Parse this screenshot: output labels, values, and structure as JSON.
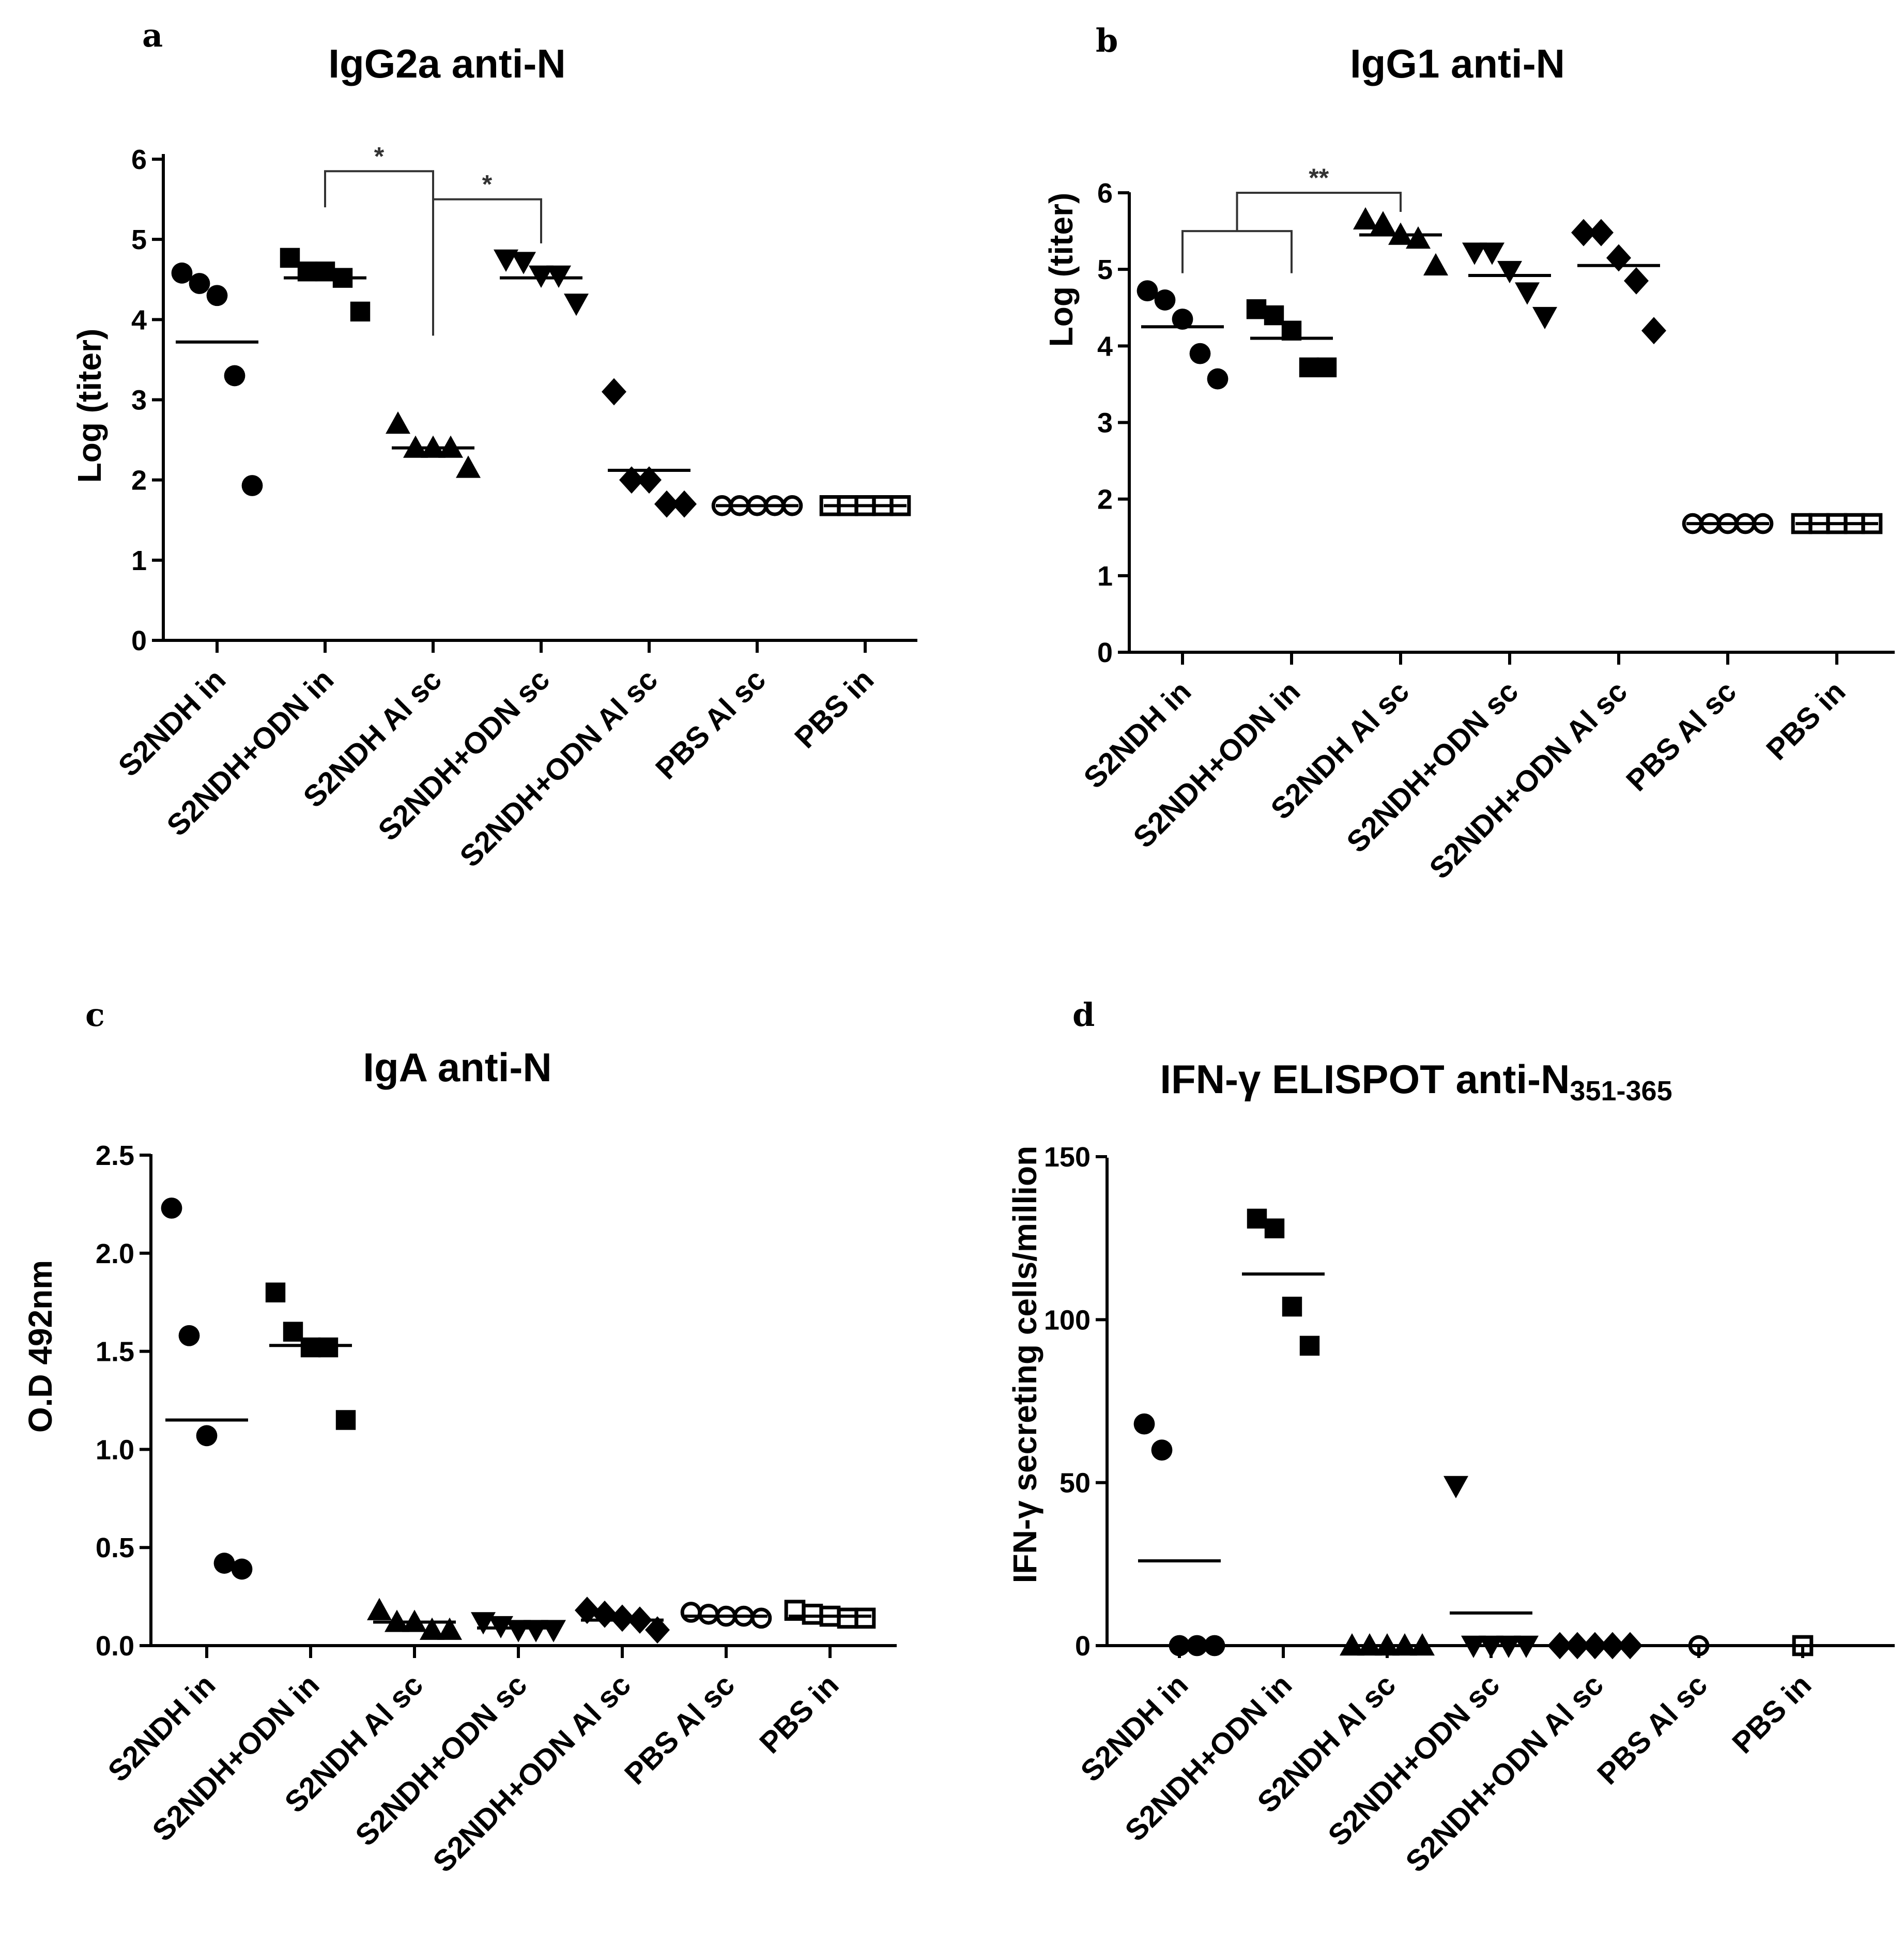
{
  "chart_data": [
    {
      "panel": "a",
      "type": "scatter",
      "title": "IgG2a anti-N",
      "ylabel": "Log (titer)",
      "xlabel": "",
      "ylim": [
        0,
        6
      ],
      "yticks": [
        "0",
        "1",
        "2",
        "3",
        "4",
        "5",
        "6"
      ],
      "categories": [
        "S2NDH in",
        "S2NDH+ODN in",
        "S2NDH Al sc",
        "S2NDH+ODN sc",
        "S2NDH+ODN Al sc",
        "PBS Al sc",
        "PBS in"
      ],
      "markers": [
        "circle",
        "square",
        "triangle-up",
        "triangle-down",
        "diamond",
        "circle-open",
        "square-open"
      ],
      "series": [
        {
          "name": "S2NDH in",
          "values": [
            4.58,
            4.45,
            4.3,
            3.3,
            1.93
          ],
          "median": 3.72
        },
        {
          "name": "S2NDH+ODN in",
          "values": [
            4.77,
            4.6,
            4.6,
            4.52,
            4.1
          ],
          "median": 4.52
        },
        {
          "name": "S2NDH Al sc",
          "values": [
            2.7,
            2.4,
            2.4,
            2.4,
            2.15
          ],
          "median": 2.4
        },
        {
          "name": "S2NDH+ODN sc",
          "values": [
            4.75,
            4.72,
            4.55,
            4.55,
            4.2
          ],
          "median": 4.52
        },
        {
          "name": "S2NDH+ODN Al sc",
          "values": [
            3.1,
            2.0,
            2.0,
            1.7,
            1.7
          ],
          "median": 2.12
        },
        {
          "name": "PBS Al sc",
          "values": [
            1.68,
            1.68,
            1.68,
            1.68,
            1.68
          ],
          "median": 1.68
        },
        {
          "name": "PBS in",
          "values": [
            1.68,
            1.68,
            1.68,
            1.68,
            1.68
          ],
          "median": 1.68
        }
      ],
      "annotations": [
        {
          "label": "*",
          "left": [
            1
          ],
          "right": [
            2
          ],
          "bar_y": 5.85,
          "drop_left": 5.4,
          "drop_right": 3.8
        },
        {
          "label": "*",
          "left": [
            2
          ],
          "right": [
            3
          ],
          "bar_y": 5.5,
          "drop_left": 3.8,
          "drop_right": 4.95
        }
      ]
    },
    {
      "panel": "b",
      "type": "scatter",
      "title": "IgG1 anti-N",
      "ylabel": "Log (titer)",
      "xlabel": "",
      "ylim": [
        0,
        6
      ],
      "yticks": [
        "0",
        "1",
        "2",
        "3",
        "4",
        "5",
        "6"
      ],
      "categories": [
        "S2NDH in",
        "S2NDH+ODN in",
        "S2NDH Al sc",
        "S2NDH+ODN sc",
        "S2NDH+ODN Al sc",
        "PBS Al sc",
        "PBS in"
      ],
      "markers": [
        "circle",
        "square",
        "triangle-up",
        "triangle-down",
        "diamond",
        "circle-open",
        "square-open"
      ],
      "series": [
        {
          "name": "S2NDH in",
          "values": [
            4.72,
            4.6,
            4.35,
            3.9,
            3.57
          ],
          "median": 4.25
        },
        {
          "name": "S2NDH+ODN in",
          "values": [
            4.48,
            4.4,
            4.2,
            3.72,
            3.72
          ],
          "median": 4.1
        },
        {
          "name": "S2NDH Al sc",
          "values": [
            5.65,
            5.6,
            5.45,
            5.4,
            5.05
          ],
          "median": 5.45
        },
        {
          "name": "S2NDH+ODN sc",
          "values": [
            5.22,
            5.22,
            4.98,
            4.7,
            4.38
          ],
          "median": 4.92
        },
        {
          "name": "S2NDH+ODN Al sc",
          "values": [
            5.48,
            5.48,
            5.15,
            4.85,
            4.2
          ],
          "median": 5.05
        },
        {
          "name": "PBS Al sc",
          "values": [
            1.68,
            1.68,
            1.68,
            1.68,
            1.68
          ],
          "median": 1.68
        },
        {
          "name": "PBS in",
          "values": [
            1.68,
            1.68,
            1.68,
            1.68,
            1.68
          ],
          "median": 1.68
        }
      ],
      "annotations": [
        {
          "label": "**",
          "left": [
            0,
            1
          ],
          "right": [
            2
          ],
          "bar_y": 6.0,
          "drop_left": 5.5,
          "drop_right": 5.75,
          "inner_y": 5.5,
          "inner_drop": 4.95
        }
      ]
    },
    {
      "panel": "c",
      "type": "scatter",
      "title": "IgA anti-N",
      "ylabel": "O.D 492nm",
      "xlabel": "",
      "ylim": [
        0,
        2.5
      ],
      "yticks": [
        "0.0",
        "0.5",
        "1.0",
        "1.5",
        "2.0",
        "2.5"
      ],
      "categories": [
        "S2NDH in",
        "S2NDH+ODN in",
        "S2NDH Al sc",
        "S2NDH+ODN sc",
        "S2NDH+ODN Al sc",
        "PBS Al sc",
        "PBS in"
      ],
      "markers": [
        "circle",
        "square",
        "triangle-up",
        "triangle-down",
        "diamond",
        "circle-open",
        "square-open"
      ],
      "series": [
        {
          "name": "S2NDH in",
          "values": [
            2.23,
            1.58,
            1.07,
            0.42,
            0.39
          ],
          "median": 1.15
        },
        {
          "name": "S2NDH+ODN in",
          "values": [
            1.8,
            1.6,
            1.52,
            1.52,
            1.15
          ],
          "median": 1.53
        },
        {
          "name": "S2NDH Al sc",
          "values": [
            0.18,
            0.12,
            0.12,
            0.08,
            0.08
          ],
          "median": 0.12
        },
        {
          "name": "S2NDH+ODN sc",
          "values": [
            0.12,
            0.1,
            0.08,
            0.08,
            0.08
          ],
          "median": 0.09
        },
        {
          "name": "S2NDH+ODN Al sc",
          "values": [
            0.18,
            0.16,
            0.14,
            0.13,
            0.08
          ],
          "median": 0.13
        },
        {
          "name": "PBS Al sc",
          "values": [
            0.17,
            0.16,
            0.15,
            0.15,
            0.14
          ],
          "median": 0.15
        },
        {
          "name": "PBS in",
          "values": [
            0.18,
            0.16,
            0.15,
            0.14,
            0.14
          ],
          "median": 0.15
        }
      ]
    },
    {
      "panel": "d",
      "type": "scatter",
      "title": "IFN-γ ELISPOT anti-N",
      "title_subscript": "351-365",
      "ylabel": "IFN-γ secreting cells/million",
      "xlabel": "",
      "ylim": [
        0,
        150
      ],
      "yticks": [
        "0",
        "50",
        "100",
        "150"
      ],
      "categories": [
        "S2NDH in",
        "S2NDH+ODN in",
        "S2NDH Al sc",
        "S2NDH+ODN sc",
        "S2NDH+ODN Al sc",
        "PBS Al sc",
        "PBS in"
      ],
      "markers": [
        "circle",
        "square",
        "triangle-up",
        "triangle-down",
        "diamond",
        "circle-open",
        "square-open"
      ],
      "series": [
        {
          "name": "S2NDH in",
          "values": [
            68,
            60,
            0,
            0,
            0
          ],
          "median": 26
        },
        {
          "name": "S2NDH+ODN in",
          "values": [
            131,
            128,
            104,
            92
          ],
          "median": 114
        },
        {
          "name": "S2NDH Al sc",
          "values": [
            0,
            0,
            0,
            0,
            0
          ],
          "median": 0
        },
        {
          "name": "S2NDH+ODN sc",
          "values": [
            49,
            0,
            0,
            0,
            0
          ],
          "median": 10
        },
        {
          "name": "S2NDH+ODN Al sc",
          "values": [
            0,
            0,
            0,
            0,
            0
          ],
          "median": 0
        },
        {
          "name": "PBS Al sc",
          "values": [
            0
          ],
          "median": 0
        },
        {
          "name": "PBS in",
          "values": [
            0
          ],
          "median": 0
        }
      ]
    }
  ]
}
